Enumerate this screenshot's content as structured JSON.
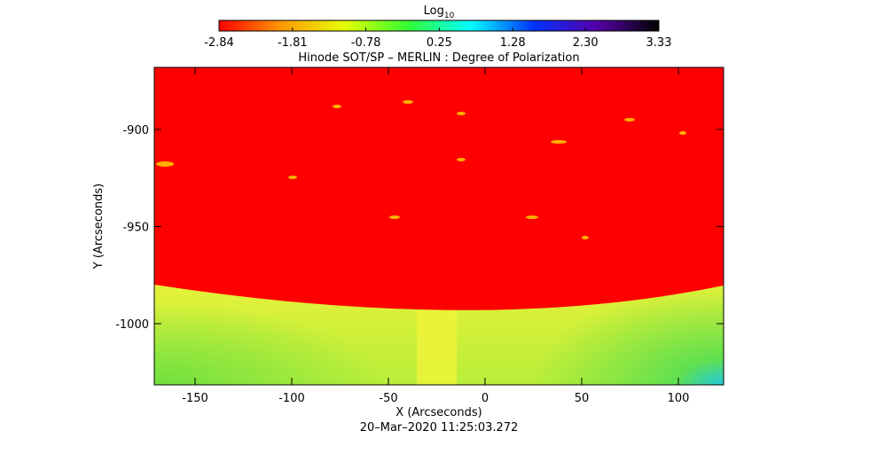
{
  "chart_data": {
    "type": "heatmap",
    "title": "Hinode SOT/SP – MERLIN : Degree of Polarization",
    "footer": "20–Mar–2020 11:25:03.272",
    "x_label": "X (Arcseconds)",
    "y_label": "Y (Arcseconds)",
    "xlim": [
      -171.1,
      123.4
    ],
    "xticks": [
      -150,
      -100,
      -50,
      0,
      50,
      100
    ],
    "ylim": [
      -1031.5,
      -868
    ],
    "yticks": [
      -900,
      -950,
      -1000
    ],
    "colorbar": {
      "label": "Log",
      "label_sub": "10",
      "lim": [
        -2.84,
        3.33
      ],
      "ticks": [
        -2.84,
        -1.81,
        -0.78,
        0.25,
        1.28,
        {
          "value": 2.3,
          "label": "2.30"
        },
        3.33
      ],
      "colormap": [
        "#ff0000",
        "#ff9900",
        "#e6ff00",
        "#33ff33",
        "#00ffff",
        "#0033ff",
        "#5500aa",
        "#000000"
      ]
    }
  }
}
